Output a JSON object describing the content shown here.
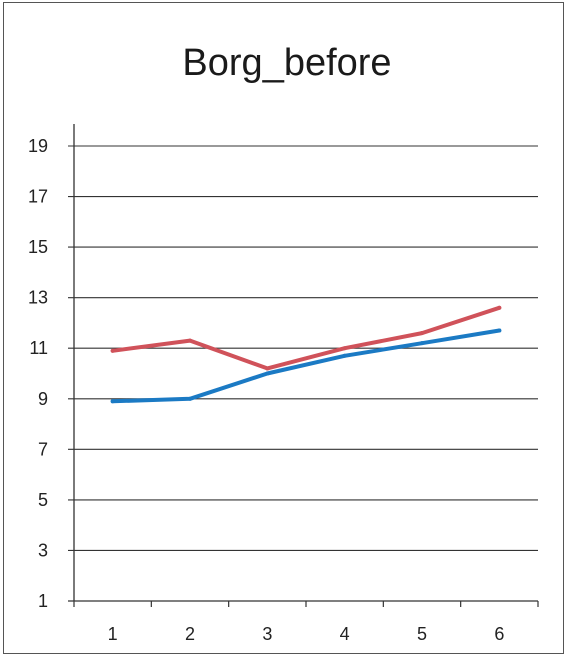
{
  "chart_data": {
    "type": "line",
    "title": "Borg_before",
    "xlabel": "",
    "ylabel": "",
    "categories": [
      "1",
      "2",
      "3",
      "4",
      "5",
      "6"
    ],
    "ylim": [
      1,
      19
    ],
    "yticks": [
      1,
      3,
      5,
      7,
      9,
      11,
      13,
      15,
      17,
      19
    ],
    "grid": true,
    "legend": "none",
    "series": [
      {
        "color": "#d0525a",
        "values": [
          10.9,
          11.3,
          10.2,
          11.0,
          11.6,
          12.6
        ]
      },
      {
        "color": "#1b7ac4",
        "values": [
          8.9,
          9.0,
          10.0,
          10.7,
          11.2,
          11.7
        ]
      }
    ]
  }
}
